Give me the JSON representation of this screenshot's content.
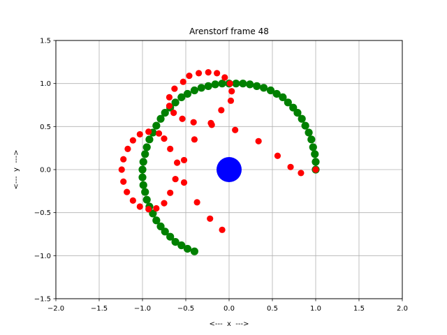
{
  "chart_data": {
    "type": "scatter",
    "title": "Arenstorf frame 48",
    "xlabel": "<---  x  --->",
    "ylabel": "<---  y  --->",
    "xlim": [
      -2.0,
      2.0
    ],
    "ylim": [
      -1.5,
      1.5
    ],
    "xticks": [
      -2.0,
      -1.5,
      -1.0,
      -0.5,
      0.0,
      0.5,
      1.0,
      1.5,
      2.0
    ],
    "yticks": [
      -1.5,
      -1.0,
      -0.5,
      0.0,
      0.5,
      1.0,
      1.5
    ],
    "xtick_labels": [
      "−2.0",
      "−1.5",
      "−1.0",
      "−0.5",
      "0.0",
      "0.5",
      "1.0",
      "1.5",
      "2.0"
    ],
    "ytick_labels": [
      "−1.5",
      "−1.0",
      "−0.5",
      "0.0",
      "0.5",
      "1.0",
      "1.5"
    ],
    "grid": true,
    "series": [
      {
        "color": "#ff0000",
        "marker_size": "small",
        "points": [
          [
            1.0,
            0.0
          ],
          [
            0.83,
            -0.04
          ],
          [
            0.71,
            0.03
          ],
          [
            0.56,
            0.16
          ],
          [
            0.34,
            0.33
          ],
          [
            0.07,
            0.46
          ],
          [
            -0.2,
            0.52
          ],
          [
            -0.21,
            0.54
          ],
          [
            -0.41,
            0.55
          ],
          [
            -0.54,
            0.59
          ],
          [
            -0.64,
            0.66
          ],
          [
            -0.69,
            0.74
          ],
          [
            -0.69,
            0.84
          ],
          [
            -0.63,
            0.94
          ],
          [
            -0.53,
            1.02
          ],
          [
            -0.46,
            1.09
          ],
          [
            -0.35,
            1.12
          ],
          [
            -0.24,
            1.13
          ],
          [
            -0.14,
            1.12
          ],
          [
            -0.05,
            1.07
          ],
          [
            0.01,
            1.0
          ],
          [
            0.03,
            0.91
          ],
          [
            0.02,
            0.8
          ],
          [
            -0.09,
            0.69
          ],
          [
            -0.4,
            0.35
          ],
          [
            -0.68,
            0.24
          ],
          [
            -0.75,
            0.36
          ],
          [
            -0.81,
            0.42
          ],
          [
            -0.93,
            0.44
          ],
          [
            -1.03,
            0.41
          ],
          [
            -1.11,
            0.34
          ],
          [
            -1.17,
            0.24
          ],
          [
            -1.22,
            0.12
          ],
          [
            -1.24,
            0.0
          ],
          [
            -1.22,
            -0.14
          ],
          [
            -1.18,
            -0.26
          ],
          [
            -1.11,
            -0.36
          ],
          [
            -1.03,
            -0.43
          ],
          [
            -0.93,
            -0.46
          ],
          [
            -0.84,
            -0.45
          ],
          [
            -0.75,
            -0.39
          ],
          [
            -0.68,
            -0.27
          ],
          [
            -0.62,
            -0.11
          ],
          [
            -0.6,
            0.08
          ],
          [
            -0.52,
            0.11
          ],
          [
            -0.52,
            -0.15
          ],
          [
            -0.37,
            -0.38
          ],
          [
            -0.22,
            -0.57
          ],
          [
            -0.08,
            -0.7
          ]
        ]
      },
      {
        "color": "#008000",
        "marker_size": "medium",
        "points": [
          [
            1.0,
            0.0
          ],
          [
            1.0,
            0.09
          ],
          [
            0.99,
            0.18
          ],
          [
            0.97,
            0.26
          ],
          [
            0.95,
            0.35
          ],
          [
            0.92,
            0.43
          ],
          [
            0.88,
            0.51
          ],
          [
            0.84,
            0.59
          ],
          [
            0.79,
            0.66
          ],
          [
            0.74,
            0.72
          ],
          [
            0.68,
            0.78
          ],
          [
            0.62,
            0.84
          ],
          [
            0.55,
            0.88
          ],
          [
            0.48,
            0.92
          ],
          [
            0.4,
            0.95
          ],
          [
            0.32,
            0.97
          ],
          [
            0.24,
            0.99
          ],
          [
            0.16,
            1.0
          ],
          [
            0.08,
            1.0
          ],
          [
            0.0,
            1.0
          ],
          [
            -0.08,
            1.0
          ],
          [
            -0.16,
            0.99
          ],
          [
            -0.24,
            0.97
          ],
          [
            -0.32,
            0.95
          ],
          [
            -0.4,
            0.92
          ],
          [
            -0.48,
            0.88
          ],
          [
            -0.55,
            0.84
          ],
          [
            -0.62,
            0.78
          ],
          [
            -0.68,
            0.72
          ],
          [
            -0.74,
            0.66
          ],
          [
            -0.79,
            0.59
          ],
          [
            -0.84,
            0.51
          ],
          [
            -0.88,
            0.43
          ],
          [
            -0.92,
            0.35
          ],
          [
            -0.95,
            0.26
          ],
          [
            -0.97,
            0.18
          ],
          [
            -0.99,
            0.09
          ],
          [
            -1.0,
            0.0
          ],
          [
            -1.0,
            -0.09
          ],
          [
            -0.99,
            -0.18
          ],
          [
            -0.97,
            -0.26
          ],
          [
            -0.95,
            -0.35
          ],
          [
            -0.92,
            -0.43
          ],
          [
            -0.88,
            -0.51
          ],
          [
            -0.84,
            -0.59
          ],
          [
            -0.79,
            -0.66
          ],
          [
            -0.74,
            -0.72
          ],
          [
            -0.68,
            -0.78
          ],
          [
            -0.62,
            -0.84
          ],
          [
            -0.55,
            -0.88
          ],
          [
            -0.48,
            -0.92
          ],
          [
            -0.4,
            -0.95
          ]
        ]
      },
      {
        "color": "#0000ff",
        "marker_size": "large",
        "points": [
          [
            0.0,
            0.0
          ]
        ]
      }
    ]
  }
}
